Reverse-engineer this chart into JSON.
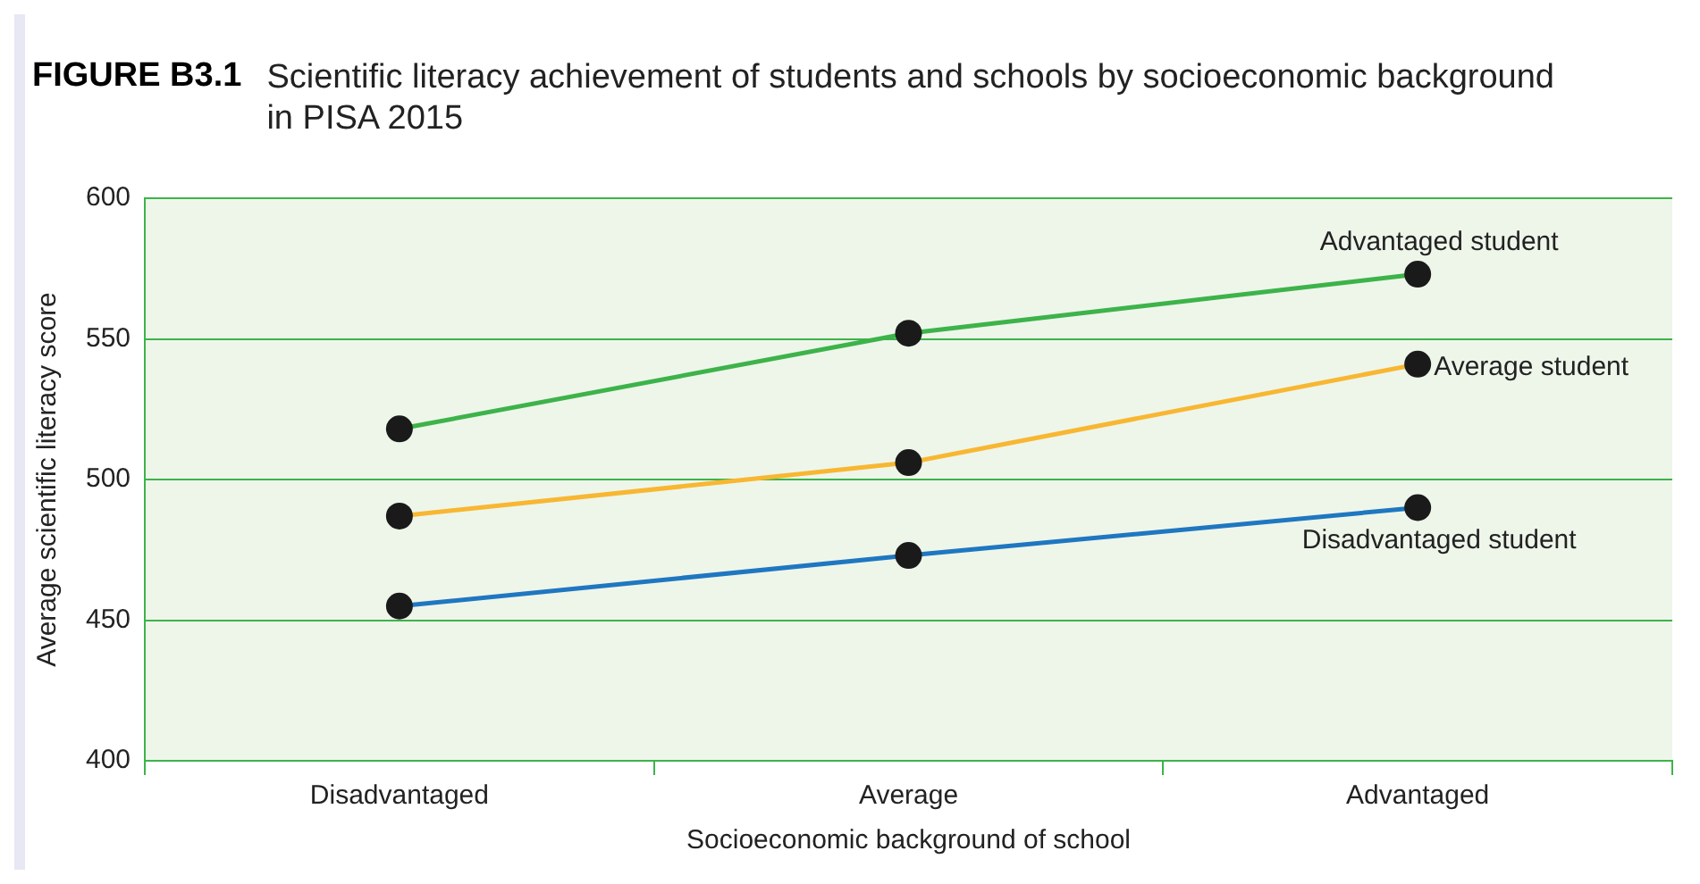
{
  "chart_data": {
    "type": "line",
    "title": "Scientific literacy achievement of students and schools by socioeconomic background in PISA 2015",
    "annotations": [
      "FIGURE B3.1"
    ],
    "xlabel": "Socioeconomic background of school",
    "ylabel": "Average scientific literacy score",
    "categories": [
      "Disadvantaged",
      "Average",
      "Advantaged"
    ],
    "series": [
      {
        "name": "Advantaged student",
        "color": "#3db34a",
        "values": [
          518,
          552,
          573
        ]
      },
      {
        "name": "Average student",
        "color": "#f8b732",
        "values": [
          487,
          506,
          541
        ]
      },
      {
        "name": "Disadvantaged student",
        "color": "#1f77c0",
        "values": [
          455,
          473,
          490
        ]
      }
    ],
    "ylim": [
      400,
      600
    ],
    "yticks": [
      400,
      450,
      500,
      550,
      600
    ],
    "grid": "y",
    "marker": "circle",
    "line_style": "solid",
    "legend": false
  }
}
